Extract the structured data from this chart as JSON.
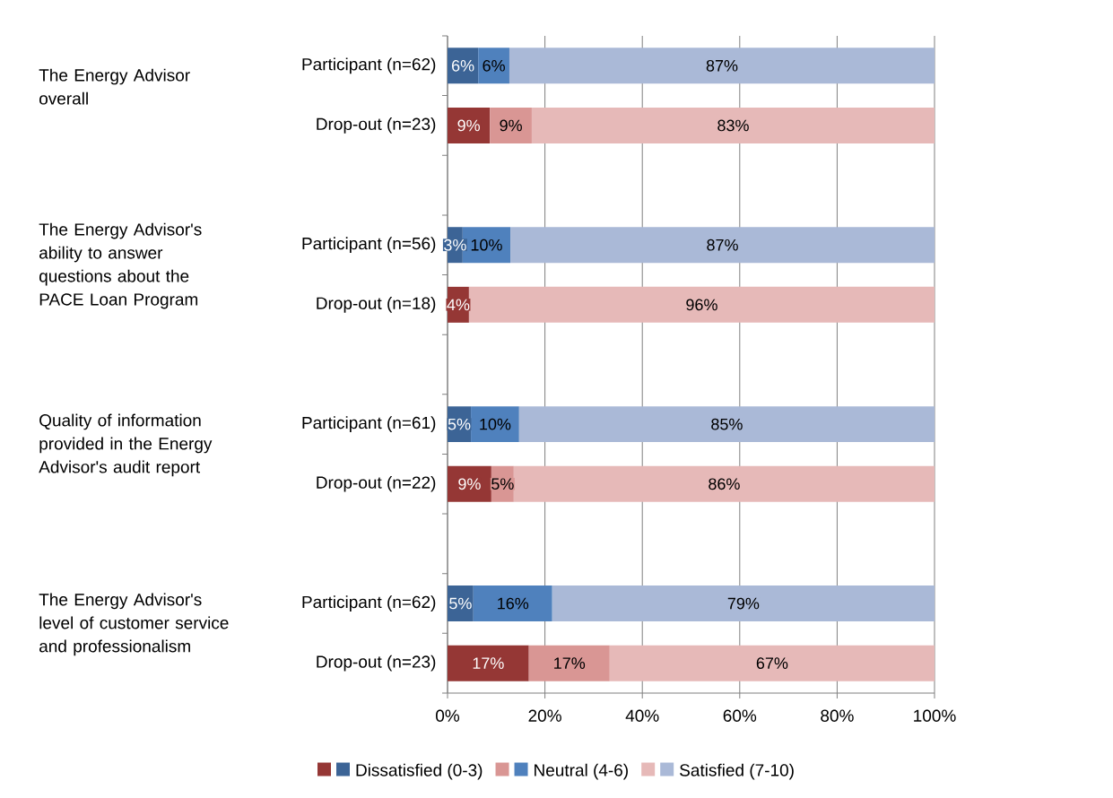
{
  "chart_data": {
    "type": "bar",
    "orientation": "horizontal",
    "stacked": true,
    "categories": [
      "Participant (n=62)",
      "Drop-out (n=23)",
      null,
      "Participant (n=56)",
      "Drop-out (n=18)",
      null,
      "Participant (n=61)",
      "Drop-out (n=22)",
      null,
      "Participant (n=62)",
      "Drop-out (n=23)"
    ],
    "series": [
      {
        "name": "Dissatisfied (0-3)",
        "colors": [
          "#3c6496",
          "#953735",
          null,
          "#3c6496",
          "#953735",
          null,
          "#3c6496",
          "#953735",
          null,
          "#3c6496",
          "#953735"
        ],
        "values": [
          6.3,
          8.7,
          null,
          3.1,
          4.4,
          null,
          4.8,
          9.0,
          null,
          5.3,
          16.7
        ],
        "value_labels": [
          "6%",
          "9%",
          null,
          "3%",
          "4%",
          null,
          "5%",
          "9%",
          null,
          "5%",
          "17%"
        ]
      },
      {
        "name": "Neutral (4-6)",
        "colors": [
          "#4f81bd",
          "#d99694",
          null,
          "#4f81bd",
          "#d99694",
          null,
          "#4f81bd",
          "#d99694",
          null,
          "#4f81bd",
          "#d99694"
        ],
        "values": [
          6.4,
          8.6,
          null,
          9.8,
          0,
          null,
          9.9,
          4.6,
          null,
          16.2,
          16.6
        ],
        "value_labels": [
          "6%",
          "9%",
          null,
          "10%",
          null,
          null,
          "10%",
          "5%",
          null,
          "16%",
          "17%"
        ]
      },
      {
        "name": "Satisfied (7-10)",
        "colors": [
          "#aab9d7",
          "#e6b9b8",
          null,
          "#aab9d7",
          "#e6b9b8",
          null,
          "#aab9d7",
          "#e6b9b8",
          null,
          "#aab9d7",
          "#e6b9b8"
        ],
        "values": [
          87.3,
          82.7,
          null,
          87.1,
          95.6,
          null,
          85.3,
          86.4,
          null,
          78.5,
          66.7
        ],
        "value_labels": [
          "87%",
          "83%",
          null,
          "87%",
          "96%",
          null,
          "85%",
          "86%",
          null,
          "79%",
          "67%"
        ]
      }
    ],
    "xlim": [
      0,
      100
    ],
    "xticks": [
      {
        "value": 0,
        "label": "0%"
      },
      {
        "value": 20,
        "label": "20%"
      },
      {
        "value": 40,
        "label": "40%"
      },
      {
        "value": 60,
        "label": "60%"
      },
      {
        "value": 80,
        "label": "80%"
      },
      {
        "value": 100,
        "label": "100%"
      }
    ],
    "grid": "x",
    "legend": "bottom",
    "annotations": [
      "The Energy Advisor overall",
      "The Energy Advisor's ability to answer questions about the PACE Loan Program",
      "Quality of information provided in the Energy Advisor's audit report",
      "The Energy Advisor's level of customer service and professionalism"
    ]
  }
}
